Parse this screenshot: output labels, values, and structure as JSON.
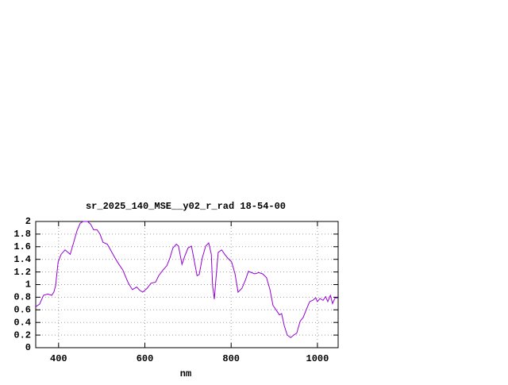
{
  "chart_data": {
    "type": "line",
    "title": "sr_2025_140_MSE__y02_r_rad 18-54-00",
    "x_label": "nm",
    "x": [
      347,
      356,
      365,
      375,
      384,
      389,
      393,
      399,
      406,
      415,
      422,
      427,
      435,
      443,
      450,
      457,
      467,
      474,
      481,
      489,
      496,
      503,
      513,
      522,
      531,
      540,
      549,
      555,
      562,
      571,
      581,
      588,
      595,
      605,
      614,
      625,
      632,
      642,
      651,
      658,
      665,
      673,
      678,
      686,
      693,
      700,
      708,
      715,
      721,
      726,
      733,
      741,
      748,
      754,
      757,
      761,
      765,
      770,
      778,
      785,
      792,
      801,
      809,
      816,
      825,
      833,
      840,
      847,
      855,
      864,
      873,
      882,
      890,
      897,
      904,
      912,
      917,
      923,
      930,
      938,
      945,
      952,
      960,
      967,
      974,
      982,
      989,
      996,
      1000,
      1006,
      1013,
      1019,
      1024,
      1030,
      1035,
      1041,
      1048
    ],
    "series": [
      {
        "color": "#9400d3",
        "values": [
          0.65,
          0.69,
          0.83,
          0.85,
          0.83,
          0.88,
          0.98,
          1.36,
          1.48,
          1.55,
          1.51,
          1.48,
          1.67,
          1.86,
          1.97,
          2.0,
          2.0,
          1.96,
          1.87,
          1.87,
          1.8,
          1.67,
          1.64,
          1.53,
          1.42,
          1.32,
          1.23,
          1.13,
          1.02,
          0.92,
          0.96,
          0.91,
          0.88,
          0.94,
          1.02,
          1.04,
          1.14,
          1.23,
          1.3,
          1.42,
          1.58,
          1.64,
          1.61,
          1.32,
          1.46,
          1.58,
          1.61,
          1.36,
          1.14,
          1.16,
          1.42,
          1.61,
          1.66,
          1.48,
          0.98,
          0.77,
          1.11,
          1.51,
          1.55,
          1.48,
          1.42,
          1.36,
          1.17,
          0.88,
          0.94,
          1.07,
          1.21,
          1.19,
          1.17,
          1.19,
          1.17,
          1.11,
          0.92,
          0.67,
          0.6,
          0.52,
          0.54,
          0.35,
          0.2,
          0.16,
          0.2,
          0.23,
          0.42,
          0.48,
          0.6,
          0.73,
          0.75,
          0.79,
          0.73,
          0.78,
          0.75,
          0.81,
          0.73,
          0.83,
          0.7,
          0.79,
          0.79
        ]
      }
    ],
    "xlim": [
      347,
      1048
    ],
    "xticks": [
      400,
      600,
      800,
      1000
    ],
    "ylim": [
      0,
      2
    ],
    "yticks": [
      0,
      0.2,
      0.4,
      0.6,
      0.8,
      1,
      1.2,
      1.4,
      1.6,
      1.8,
      2
    ],
    "grid": true
  }
}
